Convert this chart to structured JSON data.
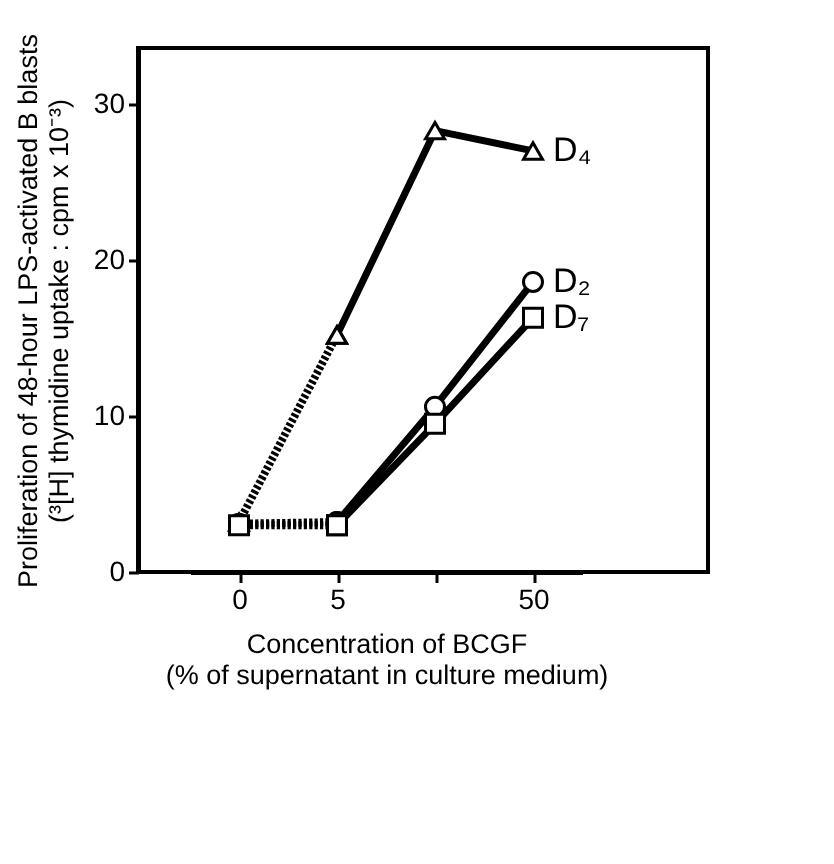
{
  "chart_data": {
    "type": "line",
    "xlabel": [
      "Concentration of BCGF",
      "(% of supernatant in culture medium)"
    ],
    "ylabel": [
      "Proliferation of 48-hour LPS-activated B blasts",
      "(³[H] thymidine uptake : cpm x 10⁻³)"
    ],
    "categories": [
      "0",
      "5",
      null,
      "50"
    ],
    "ylim": [
      0,
      33.6
    ],
    "yticks": [
      0,
      10,
      20,
      30
    ],
    "series": [
      {
        "color": "#000000",
        "marker": "triangle",
        "line_style": "dotted",
        "values": [
          3.2,
          15.2,
          null,
          null
        ]
      },
      {
        "name": "D₄",
        "color": "#000000",
        "marker": "triangle",
        "line_style": "solid",
        "values": [
          null,
          15.2,
          28.3,
          27.0
        ]
      },
      {
        "color": "#000000",
        "marker": "circle",
        "line_style": "dotted",
        "values": [
          3.1,
          3.2,
          null,
          null
        ]
      },
      {
        "name": "D₂",
        "color": "#000000",
        "marker": "circle",
        "line_style": "solid",
        "values": [
          null,
          3.2,
          10.6,
          18.6
        ]
      },
      {
        "color": "#000000",
        "marker": "square",
        "line_style": "dotted",
        "values": [
          3.0,
          3.0,
          null,
          null
        ]
      },
      {
        "name": "D₇",
        "color": "#000000",
        "marker": "square",
        "line_style": "solid",
        "values": [
          null,
          3.0,
          9.5,
          16.3
        ]
      }
    ]
  }
}
